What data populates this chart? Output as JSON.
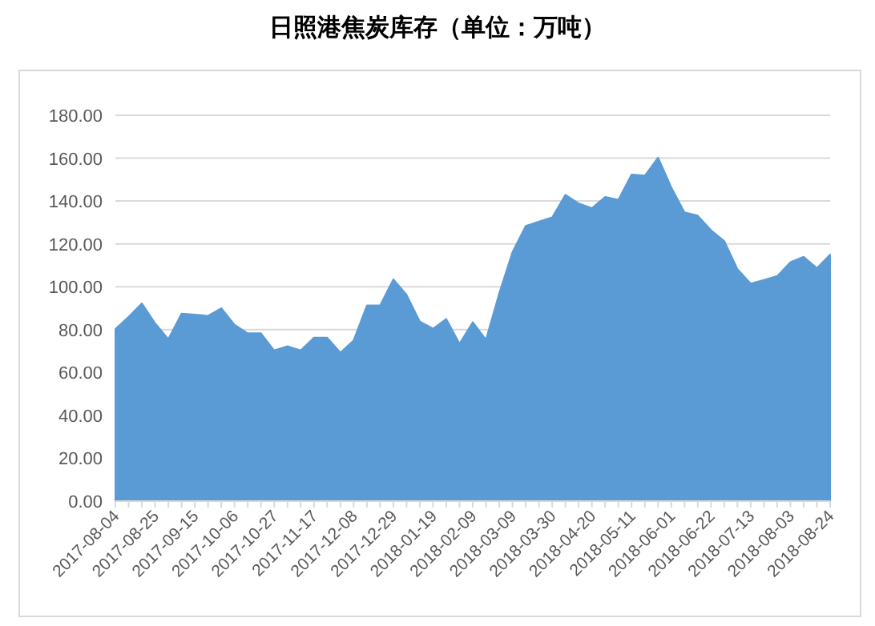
{
  "chart_data": {
    "type": "area",
    "title": "日照港焦炭库存（单位：万吨）",
    "categories": [
      "2017-08-04",
      null,
      null,
      "2017-08-25",
      null,
      null,
      "2017-09-15",
      null,
      null,
      "2017-10-06",
      null,
      null,
      "2017-10-27",
      null,
      null,
      "2017-11-17",
      null,
      null,
      "2017-12-08",
      null,
      null,
      "2017-12-29",
      null,
      null,
      "2018-01-19",
      null,
      null,
      "2018-02-09",
      null,
      null,
      "2018-03-09",
      null,
      null,
      "2018-03-30",
      null,
      null,
      "2018-04-20",
      null,
      null,
      "2018-05-11",
      null,
      null,
      "2018-06-01",
      null,
      null,
      "2018-06-22",
      null,
      null,
      "2018-07-13",
      null,
      null,
      "2018-08-03",
      null,
      null,
      "2018-08-24"
    ],
    "values": [
      80.3,
      86,
      92.3,
      83,
      75.6,
      87.5,
      87,
      86.5,
      90,
      82.3,
      78.3,
      78.3,
      70.3,
      72.3,
      70.3,
      76.3,
      76.3,
      69.3,
      75,
      91.3,
      91.3,
      103.5,
      96.3,
      83.8,
      80.5,
      85,
      73.5,
      83.5,
      75.3,
      97,
      116.2,
      128.4,
      130.4,
      132.4,
      142.9,
      138.9,
      136.7,
      141.9,
      140.6,
      152.4,
      151.9,
      160.3,
      146.4,
      134.7,
      133.2,
      126.4,
      121.4,
      108.2,
      101.5,
      103.2,
      105,
      111.5,
      114,
      108.7,
      115
    ],
    "color": "#5b9bd5",
    "ylim": [
      0,
      180
    ],
    "yticks": [
      {
        "value": 0,
        "label": "0.00"
      },
      {
        "value": 20,
        "label": "20.00"
      },
      {
        "value": 40,
        "label": "40.00"
      },
      {
        "value": 60,
        "label": "60.00"
      },
      {
        "value": 80,
        "label": "80.00"
      },
      {
        "value": 100,
        "label": "100.00"
      },
      {
        "value": 120,
        "label": "120.00"
      },
      {
        "value": 140,
        "label": "140.00"
      },
      {
        "value": 160,
        "label": "160.00"
      },
      {
        "value": 180,
        "label": "180.00"
      }
    ],
    "grid": "y"
  }
}
